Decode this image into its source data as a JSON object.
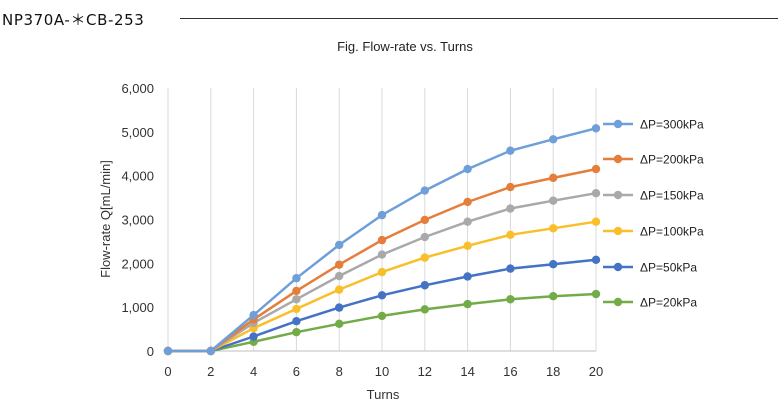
{
  "document": {
    "code": "NP370A-＊CB-253"
  },
  "chart_data": {
    "type": "line",
    "title": "Fig. Flow-rate vs. Turns",
    "xlabel": "Turns",
    "ylabel": "Flow-rate Q[mL/min]",
    "x": [
      0,
      2,
      4,
      6,
      8,
      10,
      12,
      14,
      16,
      18,
      20
    ],
    "x_ticks": [
      "0",
      "2",
      "4",
      "6",
      "8",
      "10",
      "12",
      "14",
      "16",
      "18",
      "20"
    ],
    "xlim": [
      0,
      20
    ],
    "ylim": [
      0,
      6000
    ],
    "y_ticks": [
      "0",
      "1,000",
      "2,000",
      "3,000",
      "4,000",
      "5,000",
      "6,000"
    ],
    "grid": "vertical",
    "legend_position": "right",
    "series": [
      {
        "name": "ΔP=300kPa",
        "color": "#6f9fd8",
        "values": [
          0,
          0,
          820,
          1660,
          2420,
          3100,
          3660,
          4150,
          4570,
          4830,
          5080
        ]
      },
      {
        "name": "ΔP=200kPa",
        "color": "#e57e3b",
        "values": [
          0,
          0,
          720,
          1370,
          1970,
          2530,
          2990,
          3400,
          3740,
          3950,
          4150
        ]
      },
      {
        "name": "ΔP=150kPa",
        "color": "#a9a9a9",
        "values": [
          0,
          0,
          640,
          1180,
          1710,
          2200,
          2600,
          2950,
          3250,
          3430,
          3600
        ]
      },
      {
        "name": "ΔP=100kPa",
        "color": "#f9bf2a",
        "values": [
          0,
          0,
          520,
          960,
          1400,
          1800,
          2130,
          2400,
          2650,
          2800,
          2950
        ]
      },
      {
        "name": "ΔP=50kPa",
        "color": "#4472c4",
        "values": [
          0,
          0,
          330,
          680,
          990,
          1270,
          1500,
          1700,
          1880,
          1980,
          2080
        ]
      },
      {
        "name": "ΔP=20kPa",
        "color": "#72ab47",
        "values": [
          0,
          0,
          210,
          430,
          620,
          800,
          950,
          1070,
          1180,
          1250,
          1300
        ]
      }
    ]
  }
}
